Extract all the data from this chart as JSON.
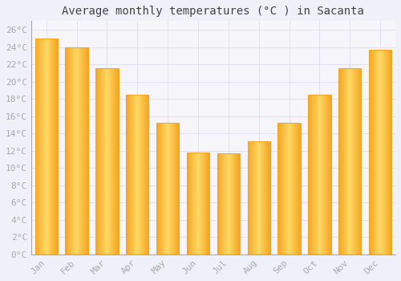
{
  "title": "Average monthly temperatures (°C ) in Sacanta",
  "months": [
    "Jan",
    "Feb",
    "Mar",
    "Apr",
    "May",
    "Jun",
    "Jul",
    "Aug",
    "Sep",
    "Oct",
    "Nov",
    "Dec"
  ],
  "values": [
    25.0,
    24.0,
    21.5,
    18.5,
    15.2,
    11.8,
    11.7,
    13.1,
    15.2,
    18.5,
    21.5,
    23.7
  ],
  "bar_color_center": "#FFD966",
  "bar_color_edge": "#F5A623",
  "background_color": "#F0F0F8",
  "plot_bg_color": "#F5F5FA",
  "grid_color": "#DDDDEE",
  "ytick_labels": [
    "0°C",
    "2°C",
    "4°C",
    "6°C",
    "8°C",
    "10°C",
    "12°C",
    "14°C",
    "16°C",
    "18°C",
    "20°C",
    "22°C",
    "24°C",
    "26°C"
  ],
  "ytick_values": [
    0,
    2,
    4,
    6,
    8,
    10,
    12,
    14,
    16,
    18,
    20,
    22,
    24,
    26
  ],
  "ylim": [
    0,
    27
  ],
  "title_fontsize": 10,
  "tick_fontsize": 8,
  "tick_color": "#AAAAAA",
  "font_family": "monospace",
  "bar_width": 0.75
}
